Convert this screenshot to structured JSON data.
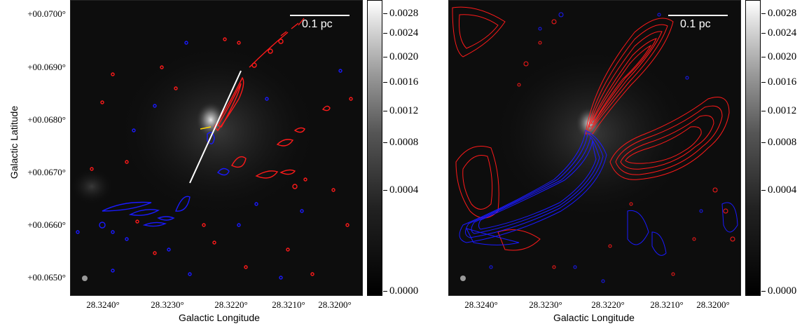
{
  "left_panel": {
    "y_axis_title": "Galactic Latitude",
    "x_axis_title": "Galactic Longitude",
    "y_ticks": [
      "+00.0700°",
      "+00.0690°",
      "+00.0680°",
      "+00.0670°",
      "+00.0660°",
      "+00.0650°"
    ],
    "x_ticks": [
      "28.3240°",
      "28.3230°",
      "28.3220°",
      "28.3210°",
      "28.3200°"
    ],
    "scale_label": "0.1 pc",
    "colorbar_ticks": [
      "0.0028",
      "0.0024",
      "0.0020",
      "0.0016",
      "0.0012",
      "0.0008",
      "0.0004",
      "0.0000"
    ]
  },
  "right_panel": {
    "x_axis_title": "Galactic Longitude",
    "x_ticks": [
      "28.3240°",
      "28.3230°",
      "28.3220°",
      "28.3210°",
      "28.3200°"
    ],
    "scale_label": "0.1 pc",
    "colorbar_ticks": [
      "0.0028",
      "0.0024",
      "0.0020",
      "0.0016",
      "0.0012",
      "0.0008",
      "0.0004",
      "0.0000"
    ]
  },
  "colors": {
    "red_contour": "#ff1a1a",
    "blue_contour": "#1a1aff",
    "outflow_axis": "#ffffff",
    "marker": "#ffd700"
  }
}
